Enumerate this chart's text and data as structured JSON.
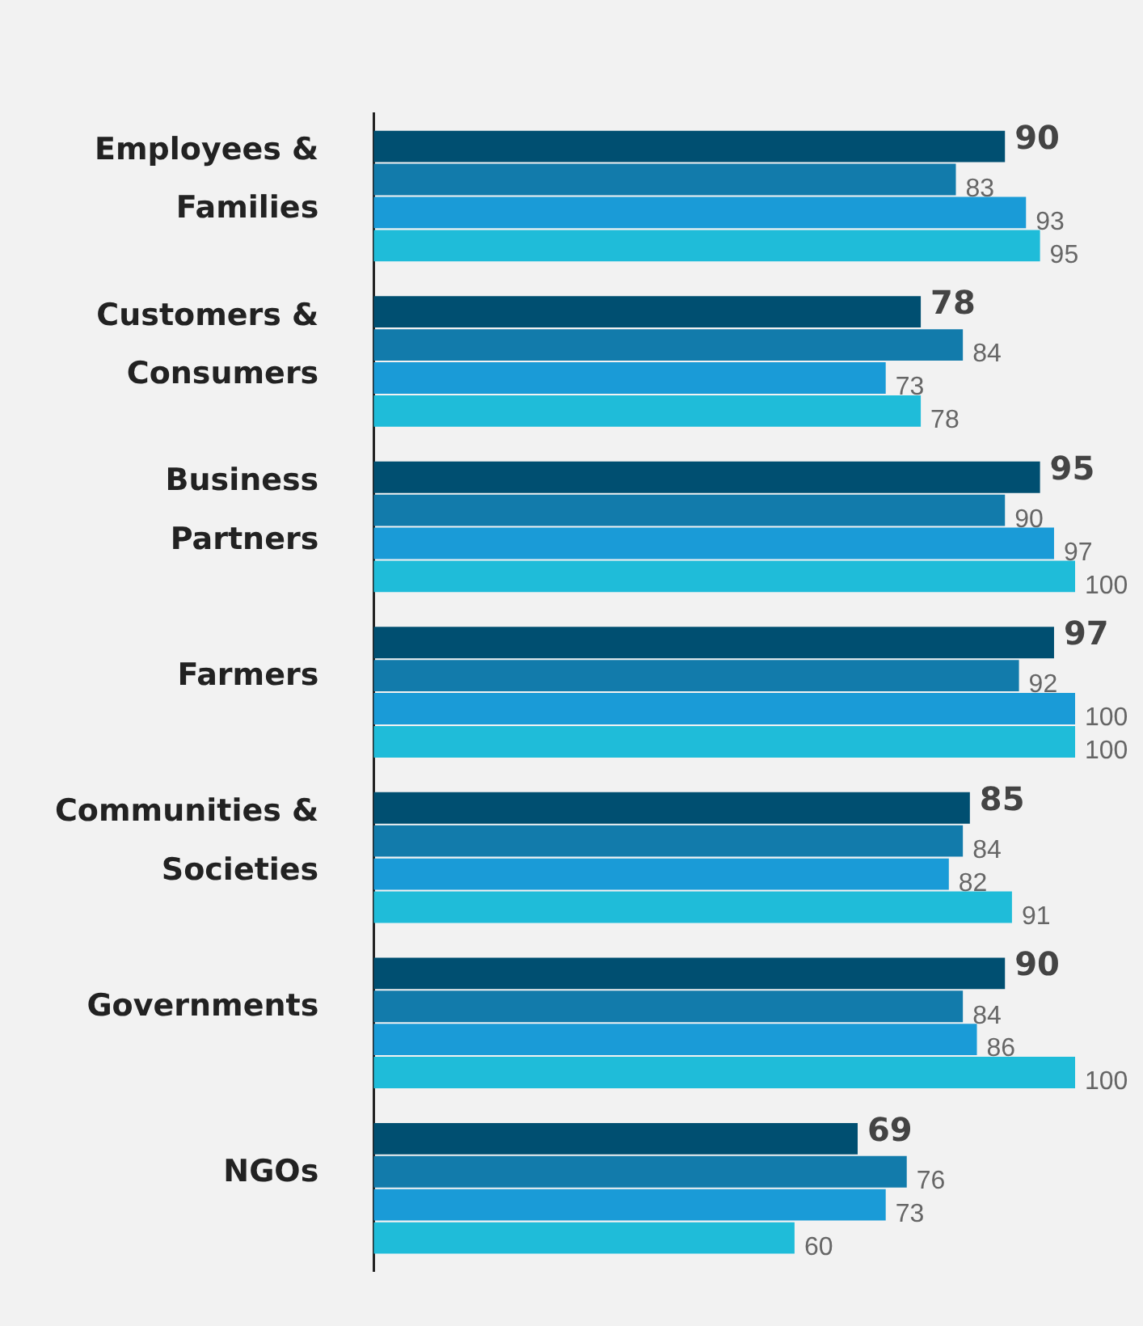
{
  "chart_data": {
    "type": "bar",
    "orientation": "horizontal",
    "categories": [
      "Employees & Families",
      "Customers & Consumers",
      "Business Partners",
      "Farmers",
      "Communities & Societies",
      "Governments",
      "NGOs"
    ],
    "series": [
      {
        "color": "#004f71",
        "values": [
          90,
          78,
          95,
          97,
          85,
          90,
          69
        ]
      },
      {
        "color": "#127bab",
        "values": [
          83,
          84,
          90,
          92,
          84,
          84,
          76
        ]
      },
      {
        "color": "#1a9bd7",
        "values": [
          93,
          73,
          97,
          100,
          82,
          86,
          73
        ]
      },
      {
        "color": "#1fbcd9",
        "values": [
          95,
          78,
          100,
          100,
          91,
          100,
          60
        ]
      }
    ],
    "xlim": [
      0,
      100
    ],
    "tick_labels": "y",
    "grid": false,
    "legend": false,
    "data_labels": true
  }
}
